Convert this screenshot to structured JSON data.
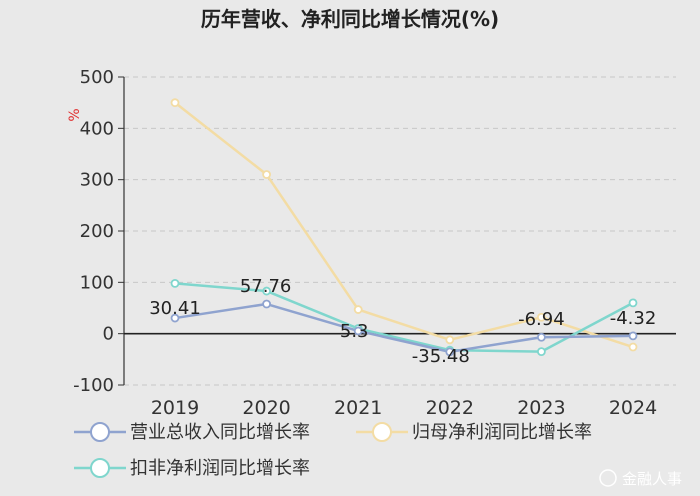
{
  "chart_data": {
    "type": "line",
    "title": "历年营收、净利同比增长情况(%)",
    "ylabel": "%",
    "categories": [
      "2019",
      "2020",
      "2021",
      "2022",
      "2023",
      "2024"
    ],
    "ylim": [
      -100,
      500
    ],
    "yticks": [
      500,
      400,
      300,
      200,
      100,
      0,
      -100
    ],
    "series": [
      {
        "name": "营业总收入同比增长率",
        "color": "#8fa3cf",
        "values": [
          30.41,
          57.76,
          5.3,
          -35.48,
          -6.94,
          -4.32
        ],
        "labels": [
          "30.41",
          "57.76",
          "5.3",
          "-35.48",
          "-6.94",
          "-4.32"
        ]
      },
      {
        "name": "归母净利润同比增长率",
        "color": "#f3dca4",
        "values": [
          450,
          310,
          47,
          -12,
          32,
          -26
        ]
      },
      {
        "name": "扣非净利润同比增长率",
        "color": "#7fd6cd",
        "values": [
          98,
          83,
          10,
          -32,
          -35,
          60
        ]
      }
    ]
  },
  "watermark": "金融人事"
}
